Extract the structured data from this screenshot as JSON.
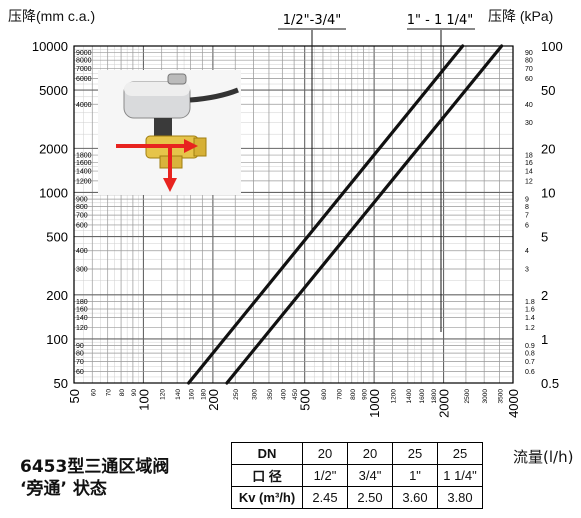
{
  "chart_data": {
    "type": "line",
    "ylabel_left": "压降(mm c.a.)",
    "ylabel_right": "压降 (kPa)",
    "xlabel": "流量(l/h)",
    "xscale": "log",
    "yscale": "log",
    "xlim": [
      50,
      4000
    ],
    "ylim": [
      50,
      10000
    ],
    "ylim_right": [
      0.5,
      100
    ],
    "x_major_ticks": [
      "50",
      "100",
      "200",
      "500",
      "1000",
      "2000",
      "4000"
    ],
    "x_minor_ticks": [
      "60",
      "70",
      "80",
      "90",
      "120",
      "140",
      "160",
      "180",
      "250",
      "300",
      "350",
      "400",
      "450",
      "600",
      "700",
      "800",
      "900",
      "1200",
      "1400",
      "1600",
      "1800",
      "2500",
      "3000",
      "3500"
    ],
    "y_left_major_ticks": [
      "10000",
      "5000",
      "2000",
      "1000",
      "500",
      "200",
      "100",
      "50"
    ],
    "y_left_minor_ticks": [
      "9000",
      "8000",
      "7000",
      "6000",
      "4000",
      "1800",
      "1600",
      "1400",
      "1200",
      "900",
      "800",
      "700",
      "600",
      "400",
      "300",
      "180",
      "160",
      "140",
      "120",
      "90",
      "80",
      "70",
      "60"
    ],
    "y_right_major_ticks": [
      "100",
      "50",
      "20",
      "10",
      "5",
      "2",
      "1",
      "0.5"
    ],
    "y_right_minor_ticks": [
      "90",
      "80",
      "70",
      "60",
      "40",
      "30",
      "18",
      "16",
      "14",
      "12",
      "9",
      "8",
      "7",
      "6",
      "4",
      "3",
      "1.8",
      "1.6",
      "1.4",
      "1.2",
      "0.9",
      "0.8",
      "0.7",
      "0.6"
    ],
    "grid": true,
    "series": [
      {
        "name": "1/2\"-3/4\"",
        "x": [
          157,
          2420
        ],
        "y": [
          50,
          10000
        ]
      },
      {
        "name": "1\" - 1 1/4\"",
        "x": [
          230,
          3570
        ],
        "y": [
          50,
          10000
        ]
      }
    ]
  },
  "product": {
    "title_line1": "6453型三通区域阀",
    "title_line2": "‘旁通’ 状态"
  },
  "kv_table": {
    "dn_label": "DN",
    "dn": [
      "20",
      "20",
      "25",
      "25"
    ],
    "size_label": "口 径",
    "size": [
      "1/2\"",
      "3/4\"",
      "1\"",
      "1 1/4\""
    ],
    "kv_label": "Kv (m³/h)",
    "kv": [
      "2.45",
      "2.50",
      "3.60",
      "3.80"
    ]
  },
  "colors": {
    "grid": "#9a9a9a",
    "line": "#111111",
    "arrow": "#e8231f"
  }
}
